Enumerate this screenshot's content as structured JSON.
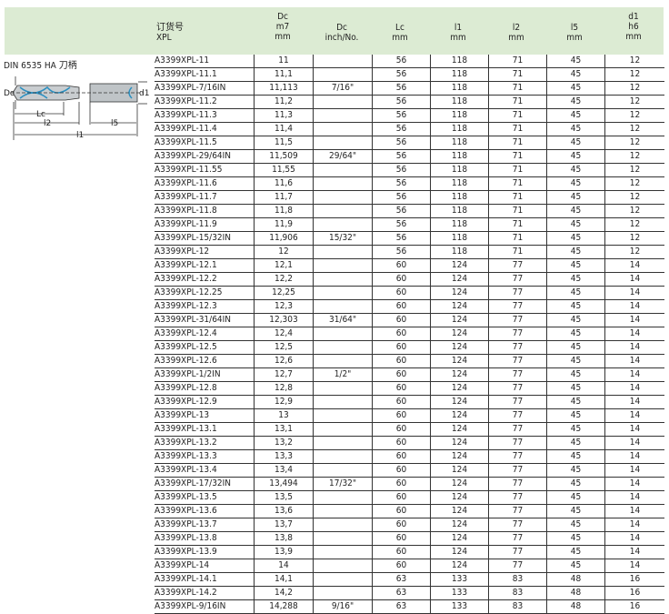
{
  "header": {
    "columns": [
      {
        "line1": "订货号",
        "line2": "XPL"
      },
      {
        "line1": "Dc",
        "line2": "m7",
        "line3": "mm"
      },
      {
        "line1": "Dc",
        "line2": "inch/No."
      },
      {
        "line1": "Lc",
        "line2": "mm"
      },
      {
        "line1": "l1",
        "line2": "mm"
      },
      {
        "line1": "l2",
        "line2": "mm"
      },
      {
        "line1": "l5",
        "line2": "mm"
      },
      {
        "line1": "d1",
        "line2": "h6",
        "line3": "mm"
      }
    ]
  },
  "shank_title": "DIN 6535 HA 刀柄",
  "drawing_labels": {
    "dc": "Dc",
    "d1": "d1",
    "lc": "Lc",
    "l2": "l2",
    "l5": "l5",
    "l1": "l1"
  },
  "accent_color": "#dcebd3",
  "rows": [
    [
      "A3399XPL-11",
      "11",
      "",
      "56",
      "118",
      "71",
      "45",
      "12"
    ],
    [
      "A3399XPL-11.1",
      "11,1",
      "",
      "56",
      "118",
      "71",
      "45",
      "12"
    ],
    [
      "A3399XPL-7/16IN",
      "11,113",
      "7/16\"",
      "56",
      "118",
      "71",
      "45",
      "12"
    ],
    [
      "A3399XPL-11.2",
      "11,2",
      "",
      "56",
      "118",
      "71",
      "45",
      "12"
    ],
    [
      "A3399XPL-11.3",
      "11,3",
      "",
      "56",
      "118",
      "71",
      "45",
      "12"
    ],
    [
      "A3399XPL-11.4",
      "11,4",
      "",
      "56",
      "118",
      "71",
      "45",
      "12"
    ],
    [
      "A3399XPL-11.5",
      "11,5",
      "",
      "56",
      "118",
      "71",
      "45",
      "12"
    ],
    [
      "A3399XPL-29/64IN",
      "11,509",
      "29/64\"",
      "56",
      "118",
      "71",
      "45",
      "12"
    ],
    [
      "A3399XPL-11.55",
      "11,55",
      "",
      "56",
      "118",
      "71",
      "45",
      "12"
    ],
    [
      "A3399XPL-11.6",
      "11,6",
      "",
      "56",
      "118",
      "71",
      "45",
      "12"
    ],
    [
      "A3399XPL-11.7",
      "11,7",
      "",
      "56",
      "118",
      "71",
      "45",
      "12"
    ],
    [
      "A3399XPL-11.8",
      "11,8",
      "",
      "56",
      "118",
      "71",
      "45",
      "12"
    ],
    [
      "A3399XPL-11.9",
      "11,9",
      "",
      "56",
      "118",
      "71",
      "45",
      "12"
    ],
    [
      "A3399XPL-15/32IN",
      "11,906",
      "15/32\"",
      "56",
      "118",
      "71",
      "45",
      "12"
    ],
    [
      "A3399XPL-12",
      "12",
      "",
      "56",
      "118",
      "71",
      "45",
      "12"
    ],
    [
      "A3399XPL-12.1",
      "12,1",
      "",
      "60",
      "124",
      "77",
      "45",
      "14"
    ],
    [
      "A3399XPL-12.2",
      "12,2",
      "",
      "60",
      "124",
      "77",
      "45",
      "14"
    ],
    [
      "A3399XPL-12.25",
      "12,25",
      "",
      "60",
      "124",
      "77",
      "45",
      "14"
    ],
    [
      "A3399XPL-12.3",
      "12,3",
      "",
      "60",
      "124",
      "77",
      "45",
      "14"
    ],
    [
      "A3399XPL-31/64IN",
      "12,303",
      "31/64\"",
      "60",
      "124",
      "77",
      "45",
      "14"
    ],
    [
      "A3399XPL-12.4",
      "12,4",
      "",
      "60",
      "124",
      "77",
      "45",
      "14"
    ],
    [
      "A3399XPL-12.5",
      "12,5",
      "",
      "60",
      "124",
      "77",
      "45",
      "14"
    ],
    [
      "A3399XPL-12.6",
      "12,6",
      "",
      "60",
      "124",
      "77",
      "45",
      "14"
    ],
    [
      "A3399XPL-1/2IN",
      "12,7",
      "1/2\"",
      "60",
      "124",
      "77",
      "45",
      "14"
    ],
    [
      "A3399XPL-12.8",
      "12,8",
      "",
      "60",
      "124",
      "77",
      "45",
      "14"
    ],
    [
      "A3399XPL-12.9",
      "12,9",
      "",
      "60",
      "124",
      "77",
      "45",
      "14"
    ],
    [
      "A3399XPL-13",
      "13",
      "",
      "60",
      "124",
      "77",
      "45",
      "14"
    ],
    [
      "A3399XPL-13.1",
      "13,1",
      "",
      "60",
      "124",
      "77",
      "45",
      "14"
    ],
    [
      "A3399XPL-13.2",
      "13,2",
      "",
      "60",
      "124",
      "77",
      "45",
      "14"
    ],
    [
      "A3399XPL-13.3",
      "13,3",
      "",
      "60",
      "124",
      "77",
      "45",
      "14"
    ],
    [
      "A3399XPL-13.4",
      "13,4",
      "",
      "60",
      "124",
      "77",
      "45",
      "14"
    ],
    [
      "A3399XPL-17/32IN",
      "13,494",
      "17/32\"",
      "60",
      "124",
      "77",
      "45",
      "14"
    ],
    [
      "A3399XPL-13.5",
      "13,5",
      "",
      "60",
      "124",
      "77",
      "45",
      "14"
    ],
    [
      "A3399XPL-13.6",
      "13,6",
      "",
      "60",
      "124",
      "77",
      "45",
      "14"
    ],
    [
      "A3399XPL-13.7",
      "13,7",
      "",
      "60",
      "124",
      "77",
      "45",
      "14"
    ],
    [
      "A3399XPL-13.8",
      "13,8",
      "",
      "60",
      "124",
      "77",
      "45",
      "14"
    ],
    [
      "A3399XPL-13.9",
      "13,9",
      "",
      "60",
      "124",
      "77",
      "45",
      "14"
    ],
    [
      "A3399XPL-14",
      "14",
      "",
      "60",
      "124",
      "77",
      "45",
      "14"
    ],
    [
      "A3399XPL-14.1",
      "14,1",
      "",
      "63",
      "133",
      "83",
      "48",
      "16"
    ],
    [
      "A3399XPL-14.2",
      "14,2",
      "",
      "63",
      "133",
      "83",
      "48",
      "16"
    ],
    [
      "A3399XPL-9/16IN",
      "14,288",
      "9/16\"",
      "63",
      "133",
      "83",
      "48",
      "16"
    ]
  ]
}
